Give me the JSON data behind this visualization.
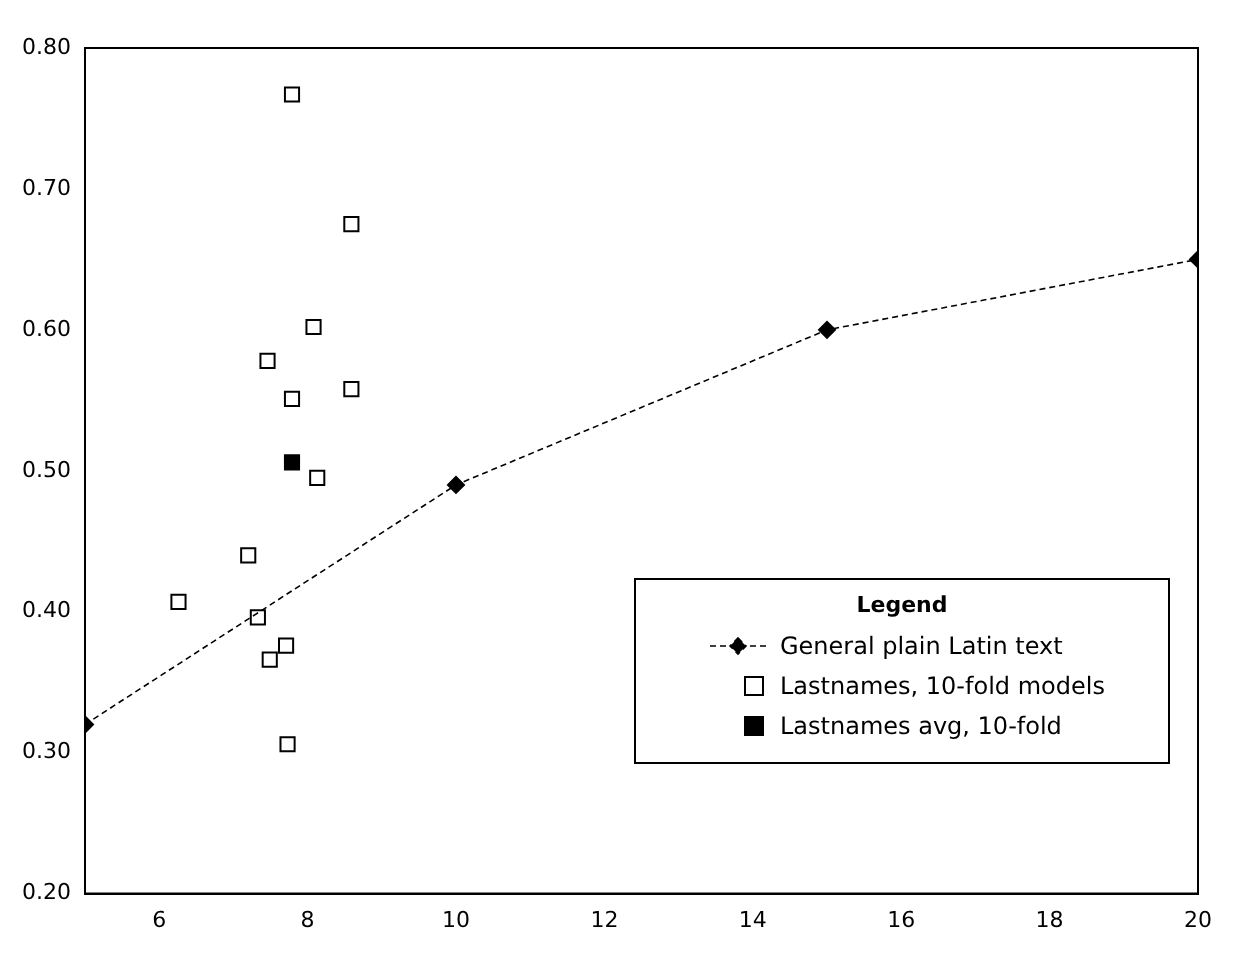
{
  "chart_data": {
    "type": "scatter",
    "xlim": [
      5,
      20
    ],
    "xticks": [
      6,
      8,
      10,
      12,
      14,
      16,
      18,
      20
    ],
    "ylim": [
      0.2,
      0.8
    ],
    "yticks": [
      {
        "value": 0.2,
        "label": "0.20"
      },
      {
        "value": 0.3,
        "label": "0.30"
      },
      {
        "value": 0.4,
        "label": "0.40"
      },
      {
        "value": 0.5,
        "label": "0.50"
      },
      {
        "value": 0.6,
        "label": "0.60"
      },
      {
        "value": 0.7,
        "label": "0.70"
      },
      {
        "value": 0.8,
        "label": "0.80"
      }
    ],
    "grid": false,
    "legend": "bottom right",
    "legend_title": "Legend",
    "series": [
      {
        "name": "General plain Latin text",
        "type": "line",
        "color": "#000000",
        "marker": "diamond",
        "line_style": "dashed",
        "x": [
          5,
          10,
          15,
          20
        ],
        "values": [
          0.32,
          0.49,
          0.6,
          0.65
        ]
      },
      {
        "name": "Lastnames, 10-fold models",
        "color": "#000000",
        "marker": "square",
        "x": [
          7.79,
          8.59,
          8.08,
          7.46,
          7.79,
          8.59,
          8.13,
          7.2,
          6.26,
          7.33,
          7.71,
          7.49,
          7.73
        ],
        "values": [
          0.767,
          0.675,
          0.602,
          0.578,
          0.551,
          0.558,
          0.495,
          0.44,
          0.407,
          0.396,
          0.376,
          0.366,
          0.306
        ]
      },
      {
        "name": "Lastnames avg, 10-fold",
        "color": "#000000",
        "marker": "square",
        "x": [
          7.79
        ],
        "values": [
          0.506
        ]
      }
    ]
  }
}
